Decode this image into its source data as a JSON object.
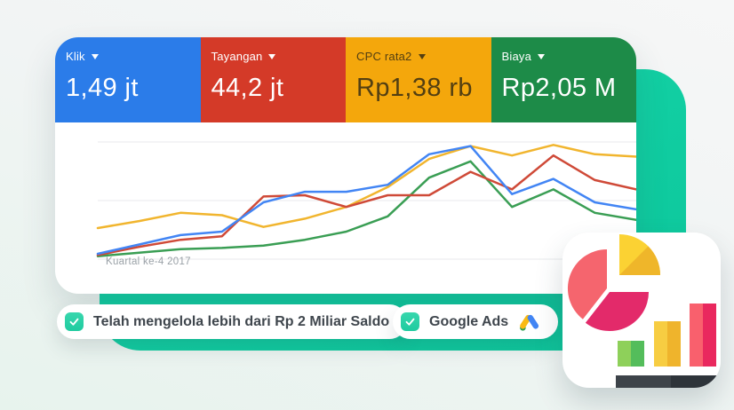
{
  "metric_cards": [
    {
      "label": "Klik",
      "value": "1,49 jt",
      "color": "#2b7ce9",
      "text_color": "#ffffff"
    },
    {
      "label": "Tayangan",
      "value": "44,2 jt",
      "color": "#d43a28",
      "text_color": "#ffffff"
    },
    {
      "label": "CPC rata2",
      "value": "Rp1,38 rb",
      "color": "#f4a70c",
      "text_color": "#533f12"
    },
    {
      "label": "Biaya",
      "value": "Rp2,05 M",
      "color": "#1d8b48",
      "text_color": "#ffffff"
    }
  ],
  "chart_data": {
    "type": "line",
    "caption": "Kuartal ke-4 2017",
    "x": [
      1,
      2,
      3,
      4,
      5,
      6,
      7,
      8,
      9,
      10,
      11,
      12,
      13,
      14
    ],
    "xlabel": "",
    "ylabel": "",
    "ylim": [
      0,
      100
    ],
    "grid": true,
    "gridline_count": 3,
    "legend_position": "none",
    "series": [
      {
        "name": "Klik",
        "color": "#4285f4",
        "values": [
          3,
          11,
          19,
          22,
          47,
          56,
          56,
          62,
          88,
          95,
          54,
          67,
          47,
          41
        ]
      },
      {
        "name": "Tayangan",
        "color": "#cf4a38",
        "values": [
          2,
          9,
          15,
          18,
          52,
          53,
          43,
          53,
          53,
          73,
          58,
          87,
          66,
          58
        ]
      },
      {
        "name": "CPC rata2",
        "color": "#f1b52e",
        "values": [
          25,
          31,
          38,
          36,
          26,
          33,
          43,
          60,
          84,
          95,
          87,
          96,
          88,
          86
        ]
      },
      {
        "name": "Biaya",
        "color": "#3a9e54",
        "values": [
          1,
          4,
          7,
          8,
          10,
          15,
          22,
          35,
          68,
          82,
          43,
          58,
          38,
          32
        ]
      }
    ]
  },
  "badges": [
    {
      "label": "Telah mengelola lebih dari Rp 2 Miliar Saldo",
      "checked": true
    },
    {
      "label": "Google Ads",
      "checked": true
    }
  ],
  "icons": {
    "dropdown_arrow": "caret-down",
    "checkmark": "check",
    "google_ads_logo": "google-ads",
    "app_icon": "pie-and-bar-chart"
  },
  "colors": {
    "teal_accent": "#10cfa3",
    "background": "#f1f4f4",
    "pill_text": "#3f464d",
    "caption_text": "#9aa1a7",
    "icon_salmon": "#f5656e",
    "icon_magenta": "#e32a6a",
    "icon_yellow_light": "#fbd233",
    "icon_yellow_dark": "#efb62a",
    "icon_green_light": "#8ed05a",
    "icon_green_dark": "#54bd5b",
    "icon_pink_light": "#f9606d",
    "icon_pink_dark": "#e9285e",
    "icon_base_dark": "#3d4349"
  }
}
